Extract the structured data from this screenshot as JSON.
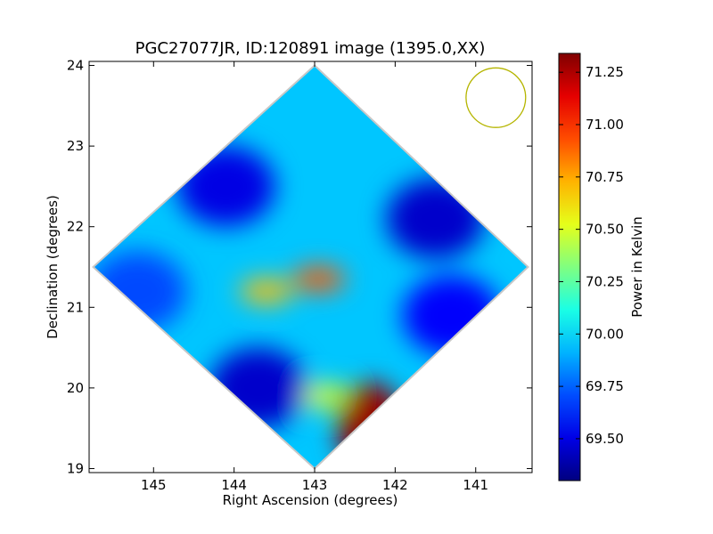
{
  "chart_data": {
    "type": "heatmap",
    "title": "PGC27077JR, ID:120891 image (1395.0,XX)",
    "xlabel": "Right Ascension (degrees)",
    "ylabel": "Declination (degrees)",
    "xlim": [
      145.8,
      140.3
    ],
    "ylim": [
      18.95,
      24.05
    ],
    "x_ticks": [
      "145",
      "144",
      "143",
      "142",
      "141"
    ],
    "x_tick_values": [
      145,
      144,
      143,
      142,
      141
    ],
    "y_ticks": [
      "19",
      "20",
      "21",
      "22",
      "23",
      "24"
    ],
    "y_tick_values": [
      19,
      20,
      21,
      22,
      23,
      24
    ],
    "grid": false,
    "colormap": "jet",
    "colorbar": {
      "label": "Power in Kelvin",
      "range": [
        69.3,
        71.34
      ],
      "ticks": [
        "69.50",
        "69.75",
        "70.00",
        "70.25",
        "70.50",
        "70.75",
        "71.00",
        "71.25"
      ],
      "tick_values": [
        69.5,
        69.75,
        70.0,
        70.25,
        70.5,
        70.75,
        71.0,
        71.25
      ]
    },
    "footprint_vertices": [
      [
        143.0,
        24.0
      ],
      [
        140.35,
        21.5
      ],
      [
        143.0,
        19.0
      ],
      [
        145.75,
        21.5
      ]
    ],
    "features": [
      {
        "name": "peak",
        "x": 142.3,
        "y": 19.5,
        "value": 71.3
      },
      {
        "name": "hot-spot",
        "x": 142.95,
        "y": 21.35,
        "value": 70.9
      },
      {
        "name": "hot-spot",
        "x": 143.6,
        "y": 21.2,
        "value": 70.7
      },
      {
        "name": "hot-spot",
        "x": 142.9,
        "y": 19.9,
        "value": 70.5
      },
      {
        "name": "cold-region",
        "x": 141.5,
        "y": 22.1,
        "value": 69.45
      },
      {
        "name": "cold-region",
        "x": 144.1,
        "y": 22.5,
        "value": 69.5
      },
      {
        "name": "cold-region",
        "x": 143.7,
        "y": 20.0,
        "value": 69.45
      },
      {
        "name": "cold-region",
        "x": 141.3,
        "y": 20.9,
        "value": 69.55
      },
      {
        "name": "cold-region",
        "x": 145.2,
        "y": 21.2,
        "value": 69.7
      }
    ],
    "beam_marker": {
      "center": [
        140.75,
        23.6
      ],
      "radius_deg": 0.37,
      "color": "#b5b500"
    }
  }
}
